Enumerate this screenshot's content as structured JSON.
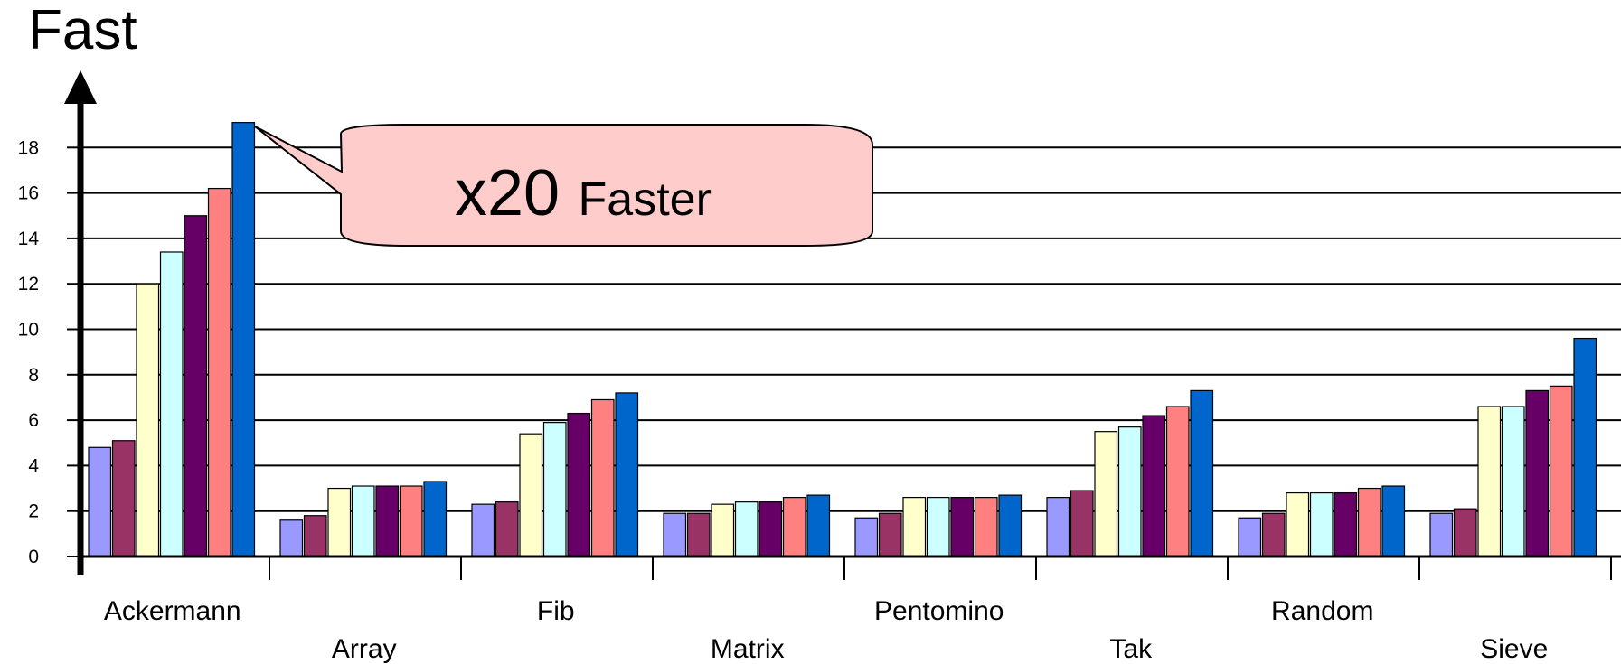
{
  "chart_data": {
    "type": "bar",
    "ylabel": "Fast",
    "ylim": [
      0,
      20
    ],
    "yticks": [
      0,
      2,
      4,
      6,
      8,
      10,
      12,
      14,
      16,
      18
    ],
    "grid": true,
    "categories": [
      "Ackermann",
      "Array",
      "Fib",
      "Matrix",
      "Pentomino",
      "Tak",
      "Random",
      "Sieve"
    ],
    "series": [
      {
        "color": "#9999ff",
        "values": [
          4.8,
          1.6,
          2.3,
          1.9,
          1.7,
          2.6,
          1.7,
          1.9
        ]
      },
      {
        "color": "#993366",
        "values": [
          5.1,
          1.8,
          2.4,
          1.9,
          1.9,
          2.9,
          1.9,
          2.1
        ]
      },
      {
        "color": "#ffffcc",
        "values": [
          12.0,
          3.0,
          5.4,
          2.3,
          2.6,
          5.5,
          2.8,
          6.6
        ]
      },
      {
        "color": "#ccffff",
        "values": [
          13.4,
          3.1,
          5.9,
          2.4,
          2.6,
          5.7,
          2.8,
          6.6
        ]
      },
      {
        "color": "#660066",
        "values": [
          15.0,
          3.1,
          6.3,
          2.4,
          2.6,
          6.2,
          2.8,
          7.3
        ]
      },
      {
        "color": "#ff8080",
        "values": [
          16.2,
          3.1,
          6.9,
          2.6,
          2.6,
          6.6,
          3.0,
          7.5
        ]
      },
      {
        "color": "#0066cc",
        "values": [
          19.1,
          3.3,
          7.2,
          2.7,
          2.7,
          7.3,
          3.1,
          9.6
        ]
      }
    ],
    "annotations": [
      {
        "text_big": "x20",
        "text_small": "Faster",
        "points_to": {
          "category": "Ackermann",
          "series_index": 6
        }
      }
    ]
  }
}
